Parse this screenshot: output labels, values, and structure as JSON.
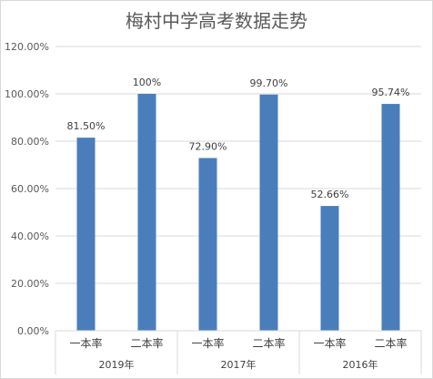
{
  "chart_data": {
    "type": "bar",
    "title": "梅村中学高考数据走势",
    "groups": [
      {
        "name": "2019年",
        "bars": [
          {
            "category": "一本率",
            "value": 81.5,
            "label": "81.50%"
          },
          {
            "category": "二本率",
            "value": 100,
            "label": "100%"
          }
        ]
      },
      {
        "name": "2017年",
        "bars": [
          {
            "category": "一本率",
            "value": 72.9,
            "label": "72.90%"
          },
          {
            "category": "二本率",
            "value": 99.7,
            "label": "99.70%"
          }
        ]
      },
      {
        "name": "2016年",
        "bars": [
          {
            "category": "一本率",
            "value": 52.66,
            "label": "52.66%"
          },
          {
            "category": "二本率",
            "value": 95.74,
            "label": "95.74%"
          }
        ]
      }
    ],
    "ylim": [
      0,
      120
    ],
    "yticks": [
      {
        "value": 0,
        "label": "0.00%"
      },
      {
        "value": 20,
        "label": "20.00%"
      },
      {
        "value": 40,
        "label": "40.00%"
      },
      {
        "value": 60,
        "label": "60.00%"
      },
      {
        "value": 80,
        "label": "80.00%"
      },
      {
        "value": 100,
        "label": "100.00%"
      },
      {
        "value": 120,
        "label": "120.00%"
      }
    ],
    "grid": true,
    "bar_color": "#4a7ebb",
    "grid_color": "#d9d9d9",
    "legend": "none"
  }
}
